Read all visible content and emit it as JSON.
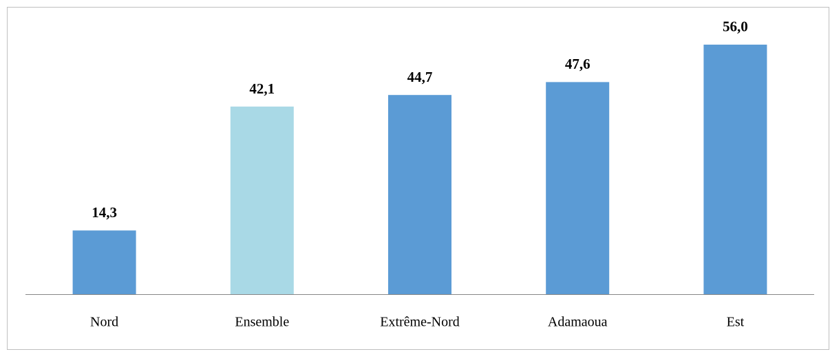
{
  "chart_data": {
    "type": "bar",
    "categories": [
      "Nord",
      "Ensemble",
      "Extrême-Nord",
      "Adamaoua",
      "Est"
    ],
    "values": [
      14.3,
      42.1,
      44.7,
      47.6,
      56.0
    ],
    "value_labels": [
      "14,3",
      "42,1",
      "44,7",
      "47,6",
      "56,0"
    ],
    "colors": [
      "#5b9bd5",
      "#a9d9e6",
      "#5b9bd5",
      "#5b9bd5",
      "#5b9bd5"
    ],
    "ylim": [
      0,
      60
    ]
  }
}
